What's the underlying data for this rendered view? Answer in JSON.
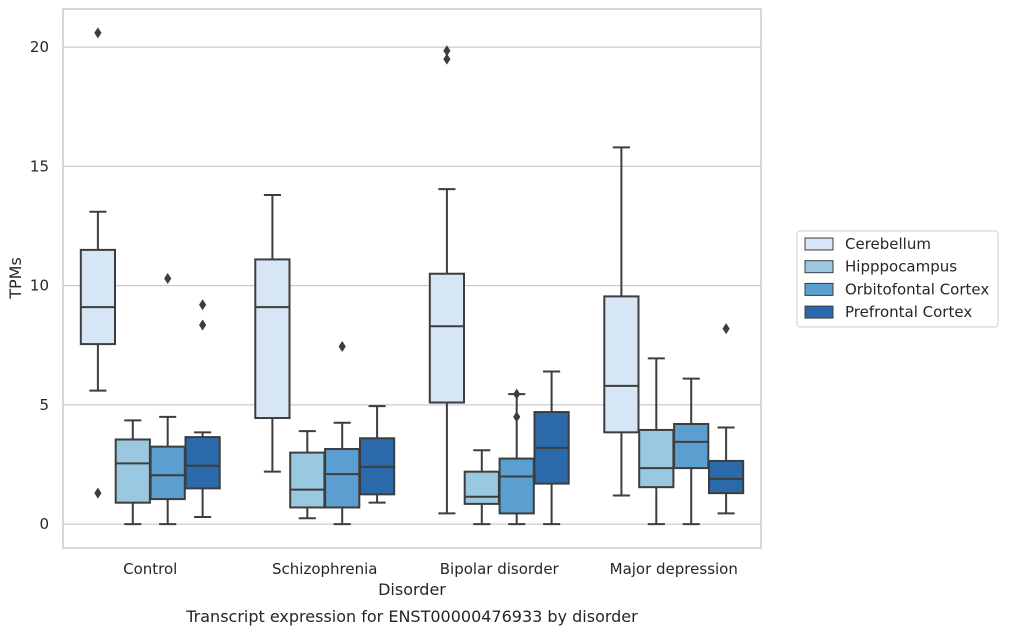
{
  "chart_data": {
    "type": "box",
    "caption": "Transcript expression for ENST00000476933 by disorder",
    "xlabel": "Disorder",
    "ylabel": "TPMs",
    "ylim": [
      -1,
      21.6
    ],
    "yticks": [
      0,
      5,
      10,
      15,
      20
    ],
    "grid": "horizontal",
    "legend_position": "right",
    "categories": [
      "Control",
      "Schizophrenia",
      "Bipolar disorder",
      "Major depression"
    ],
    "series": [
      {
        "name": "Cerebellum",
        "color": "#d6e6f4",
        "boxes": [
          {
            "whislo": 5.6,
            "q1": 7.55,
            "med": 9.1,
            "q3": 11.5,
            "whishi": 13.1,
            "fliers": [
              1.3,
              20.6
            ]
          },
          {
            "whislo": 2.2,
            "q1": 4.45,
            "med": 9.1,
            "q3": 11.1,
            "whishi": 13.8,
            "fliers": []
          },
          {
            "whislo": 0.45,
            "q1": 5.1,
            "med": 8.3,
            "q3": 10.5,
            "whishi": 14.05,
            "fliers": [
              19.5,
              19.85
            ]
          },
          {
            "whislo": 1.2,
            "q1": 3.85,
            "med": 5.8,
            "q3": 9.55,
            "whishi": 15.8,
            "fliers": []
          }
        ]
      },
      {
        "name": "Hipppocampus",
        "color": "#9ac8e0",
        "boxes": [
          {
            "whislo": 0.0,
            "q1": 0.9,
            "med": 2.55,
            "q3": 3.55,
            "whishi": 4.35,
            "fliers": []
          },
          {
            "whislo": 0.25,
            "q1": 0.7,
            "med": 1.45,
            "q3": 3.0,
            "whishi": 3.9,
            "fliers": []
          },
          {
            "whislo": 0.0,
            "q1": 0.85,
            "med": 1.15,
            "q3": 2.2,
            "whishi": 3.1,
            "fliers": []
          },
          {
            "whislo": 0.0,
            "q1": 1.55,
            "med": 2.35,
            "q3": 3.95,
            "whishi": 6.95,
            "fliers": []
          }
        ]
      },
      {
        "name": "Orbitofontal Cortex",
        "color": "#5a9fcf",
        "boxes": [
          {
            "whislo": 0.0,
            "q1": 1.05,
            "med": 2.05,
            "q3": 3.25,
            "whishi": 4.5,
            "fliers": [
              10.3
            ]
          },
          {
            "whislo": 0.0,
            "q1": 0.7,
            "med": 2.1,
            "q3": 3.15,
            "whishi": 4.25,
            "fliers": [
              7.45
            ]
          },
          {
            "whislo": 0.0,
            "q1": 0.45,
            "med": 2.0,
            "q3": 2.75,
            "whishi": 5.45,
            "fliers": [
              4.5,
              5.45
            ]
          },
          {
            "whislo": 0.0,
            "q1": 2.35,
            "med": 3.45,
            "q3": 4.2,
            "whishi": 6.1,
            "fliers": []
          }
        ]
      },
      {
        "name": "Prefrontal Cortex",
        "color": "#2a6aaa",
        "boxes": [
          {
            "whislo": 0.3,
            "q1": 1.5,
            "med": 2.45,
            "q3": 3.65,
            "whishi": 3.85,
            "fliers": [
              8.35,
              9.2
            ]
          },
          {
            "whislo": 0.9,
            "q1": 1.25,
            "med": 2.4,
            "q3": 3.6,
            "whishi": 4.95,
            "fliers": []
          },
          {
            "whislo": 0.0,
            "q1": 1.7,
            "med": 3.2,
            "q3": 4.7,
            "whishi": 6.4,
            "fliers": []
          },
          {
            "whislo": 0.45,
            "q1": 1.3,
            "med": 1.9,
            "q3": 2.65,
            "whishi": 4.05,
            "fliers": [
              8.2
            ]
          }
        ]
      }
    ]
  }
}
